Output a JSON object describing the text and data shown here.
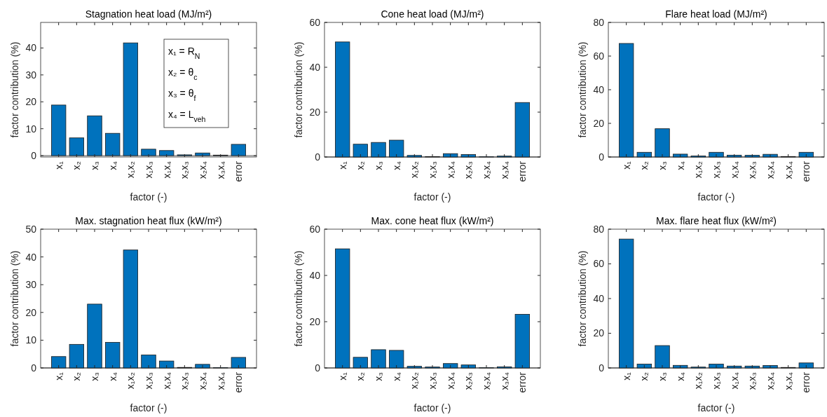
{
  "chart_data": [
    {
      "type": "bar",
      "title": "Stagnation heat load (MJ/m²)",
      "xlabel": "factor (-)",
      "ylabel": "factor contribution (%)",
      "categories": [
        "x₁",
        "x₂",
        "x₃",
        "x₄",
        "x₁x₂",
        "x₁x₃",
        "x₁x₄",
        "x₂x₃",
        "x₂x₄",
        "x₃x₄",
        "error"
      ],
      "values": [
        18.8,
        6.6,
        14.8,
        8.3,
        41.9,
        2.4,
        1.9,
        0.3,
        1.0,
        0.2,
        4.2
      ],
      "color": "#0072bd",
      "ylim": [
        -0.5,
        49.5
      ],
      "yticks": [
        0,
        10,
        20,
        30,
        40
      ],
      "annotations": [
        "x₁ = R$_{N}$",
        "x₂ = θ$_{c}$",
        "x₃ = θ$_{f}$",
        "x₄ = L$_{veh}$"
      ]
    },
    {
      "type": "bar",
      "title": "Cone heat load (MJ/m²)",
      "xlabel": "factor (-)",
      "ylabel": "factor contribution (%)",
      "categories": [
        "x₁",
        "x₂",
        "x₃",
        "x₄",
        "x₁x₂",
        "x₁x₃",
        "x₁x₄",
        "x₂x₃",
        "x₂x₄",
        "x₃x₄",
        "error"
      ],
      "values": [
        51.3,
        5.7,
        6.5,
        7.5,
        0.7,
        0.2,
        1.5,
        1.1,
        0.1,
        0.4,
        24.3
      ],
      "color": "#0072bd",
      "ylim": [
        0,
        60
      ],
      "yticks": [
        0,
        20,
        40,
        60
      ]
    },
    {
      "type": "bar",
      "title": "Flare heat load (MJ/m²)",
      "xlabel": "factor (-)",
      "ylabel": "factor contribution (%)",
      "categories": [
        "x₁",
        "x₂",
        "x₃",
        "x₄",
        "x₁x₂",
        "x₁x₃",
        "x₁x₄",
        "x₂x₃",
        "x₂x₄",
        "x₃x₄",
        "error"
      ],
      "values": [
        67.5,
        2.8,
        16.8,
        1.7,
        0.6,
        2.8,
        1.1,
        1.0,
        1.6,
        0.3,
        2.8
      ],
      "color": "#0072bd",
      "ylim": [
        0,
        80
      ],
      "yticks": [
        0,
        20,
        40,
        60,
        80
      ]
    },
    {
      "type": "bar",
      "title": "Max. stagnation heat flux (kW/m²)",
      "xlabel": "factor (-)",
      "ylabel": "factor contribution (%)",
      "categories": [
        "x₁",
        "x₂",
        "x₃",
        "x₄",
        "x₁x₂",
        "x₁x₃",
        "x₁x₄",
        "x₂x₃",
        "x₂x₄",
        "x₃x₄",
        "error"
      ],
      "values": [
        4.1,
        8.5,
        23.0,
        9.2,
        42.5,
        4.7,
        2.5,
        0.2,
        1.3,
        0.1,
        3.8
      ],
      "color": "#0072bd",
      "ylim": [
        0,
        50
      ],
      "yticks": [
        0,
        10,
        20,
        30,
        40,
        50
      ]
    },
    {
      "type": "bar",
      "title": "Max. cone heat flux (kW/m²)",
      "xlabel": "factor (-)",
      "ylabel": "factor contribution (%)",
      "categories": [
        "x₁",
        "x₂",
        "x₃",
        "x₄",
        "x₁x₂",
        "x₁x₃",
        "x₁x₄",
        "x₂x₃",
        "x₂x₄",
        "x₃x₄",
        "error"
      ],
      "values": [
        51.5,
        4.6,
        7.9,
        7.6,
        0.7,
        0.4,
        1.9,
        1.3,
        0.1,
        0.5,
        23.2
      ],
      "color": "#0072bd",
      "ylim": [
        0,
        60
      ],
      "yticks": [
        0,
        20,
        40,
        60
      ]
    },
    {
      "type": "bar",
      "title": "Max. flare heat flux (kW/m²)",
      "xlabel": "factor (-)",
      "ylabel": "factor contribution (%)",
      "categories": [
        "x₁",
        "x₂",
        "x₃",
        "x₄",
        "x₁x₂",
        "x₁x₃",
        "x₁x₄",
        "x₂x₃",
        "x₂x₄",
        "x₃x₄",
        "error"
      ],
      "values": [
        74.3,
        2.2,
        12.9,
        1.5,
        0.5,
        2.2,
        1.1,
        1.1,
        1.4,
        0.3,
        2.9
      ],
      "color": "#0072bd",
      "ylim": [
        0,
        80
      ],
      "yticks": [
        0,
        20,
        40,
        60,
        80
      ]
    }
  ]
}
